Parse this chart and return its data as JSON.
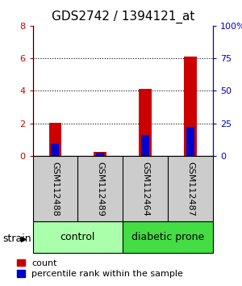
{
  "title": "GDS2742 / 1394121_at",
  "samples": [
    "GSM112488",
    "GSM112489",
    "GSM112464",
    "GSM112487"
  ],
  "count_values": [
    2.05,
    0.25,
    4.1,
    6.1
  ],
  "percentile_values": [
    9.0,
    2.5,
    16.0,
    22.5
  ],
  "groups": [
    {
      "label": "control",
      "samples": [
        0,
        1
      ],
      "color": "#aaffaa"
    },
    {
      "label": "diabetic prone",
      "samples": [
        2,
        3
      ],
      "color": "#44dd44"
    }
  ],
  "group_label": "strain",
  "ylim_left": [
    0,
    8
  ],
  "ylim_right": [
    0,
    100
  ],
  "yticks_left": [
    0,
    2,
    4,
    6,
    8
  ],
  "yticks_right": [
    0,
    25,
    50,
    75,
    100
  ],
  "ytick_labels_left": [
    "0",
    "2",
    "4",
    "6",
    "8"
  ],
  "ytick_labels_right": [
    "0",
    "25",
    "50",
    "75",
    "100%"
  ],
  "red_color": "#cc0000",
  "blue_color": "#0000cc",
  "sample_box_color": "#cccccc",
  "grid_color": "#555555",
  "title_fontsize": 11,
  "tick_fontsize": 8,
  "sample_fontsize": 8,
  "label_fontsize": 9,
  "legend_fontsize": 8
}
